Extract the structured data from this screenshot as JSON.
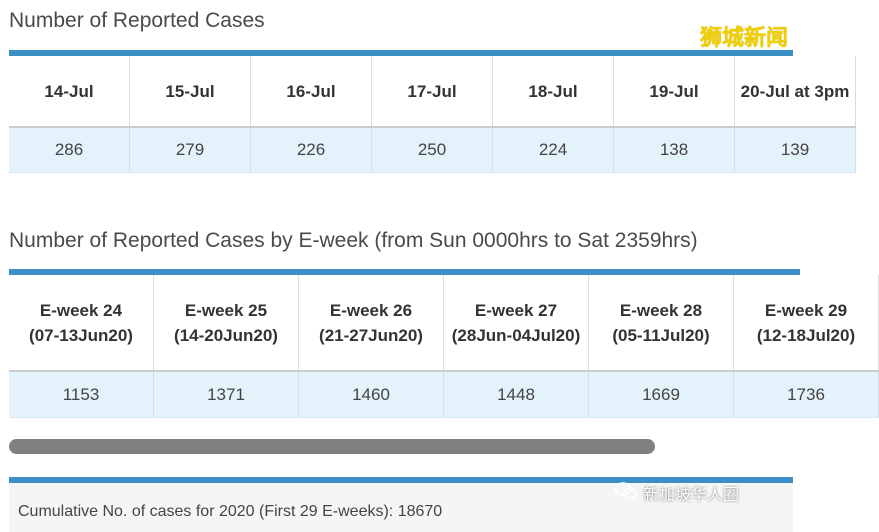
{
  "daily": {
    "title": "Number of Reported Cases",
    "headers": [
      "14-Jul",
      "15-Jul",
      "16-Jul",
      "17-Jul",
      "18-Jul",
      "19-Jul",
      "20-Jul at 3pm"
    ],
    "values": [
      "286",
      "279",
      "226",
      "250",
      "224",
      "138",
      "139"
    ]
  },
  "weekly": {
    "title": "Number of Reported Cases by E-week (from Sun 0000hrs to Sat 2359hrs)",
    "headers": [
      {
        "week": "E-week 24",
        "range": "(07-13Jun20)"
      },
      {
        "week": "E-week 25",
        "range": "(14-20Jun20)"
      },
      {
        "week": "E-week 26",
        "range": "(21-27Jun20)"
      },
      {
        "week": "E-week 27",
        "range": "(28Jun-04Jul20)"
      },
      {
        "week": "E-week 28",
        "range": "(05-11Jul20)"
      },
      {
        "week": "E-week 29",
        "range": "(12-18Jul20)"
      }
    ],
    "values": [
      "1153",
      "1371",
      "1460",
      "1448",
      "1669",
      "1736"
    ]
  },
  "cumulative": {
    "text": "Cumulative No. of cases for 2020 (First 29 E-weeks): 18670"
  },
  "watermark": {
    "top": "狮城新闻",
    "bottom": "新加坡华人圈"
  },
  "colors": {
    "accent_bar": "#3b8fc4",
    "value_row_bg": "#e4f2fb",
    "scrollbar": "#808080",
    "watermark": "#f0d000"
  }
}
